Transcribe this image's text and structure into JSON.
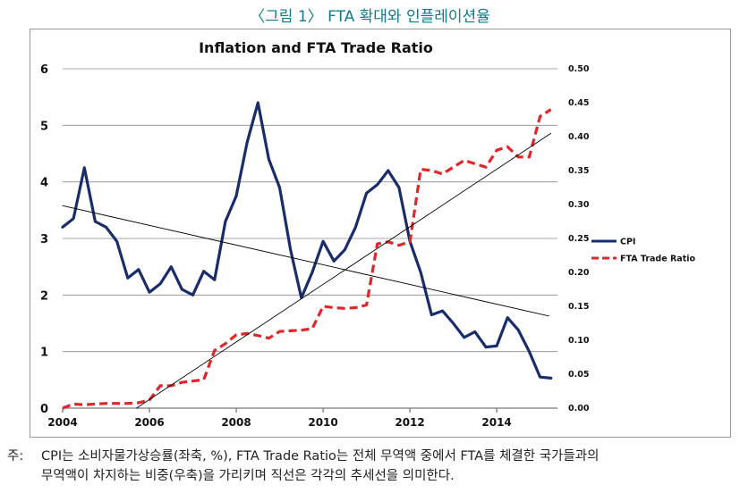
{
  "figure": {
    "caption": "〈그림 1〉 FTA 확대와 인플레이션율",
    "note_label": "주:",
    "note_line1": "CPI는 소비자물가상승률(좌축, %), FTA Trade Ratio는 전체 무역액 중에서 FTA를 체결한 국가들과의",
    "note_line2": "무역액이 차지하는 비중(우축)을 가리키며 직선은 각각의 추세선을 의미한다."
  },
  "colors": {
    "cpi": "#1a2d6b",
    "fta": "#e0262b",
    "trend": "#000000",
    "frame": "#9a9a9a",
    "caption": "#0f7a8c"
  },
  "chart_data": {
    "type": "line",
    "title": "Inflation and FTA Trade Ratio",
    "x_ticks": [
      "2004",
      "2006",
      "2008",
      "2010",
      "2012",
      "2014"
    ],
    "x_range": [
      2004,
      2015.4
    ],
    "y_left_ticks": [
      "0",
      "1",
      "2",
      "3",
      "4",
      "5",
      "6"
    ],
    "y_left_range": [
      0,
      6
    ],
    "y_right_ticks": [
      "0.00",
      "0.05",
      "0.10",
      "0.15",
      "0.20",
      "0.25",
      "0.30",
      "0.35",
      "0.40",
      "0.45",
      "0.50"
    ],
    "y_right_range": [
      0,
      0.5
    ],
    "legend_position": "right",
    "series": [
      {
        "name": "CPI",
        "axis": "left",
        "style": "solid",
        "x": [
          2004.0,
          2004.25,
          2004.5,
          2004.75,
          2005.0,
          2005.25,
          2005.5,
          2005.75,
          2006.0,
          2006.25,
          2006.5,
          2006.75,
          2007.0,
          2007.25,
          2007.5,
          2007.75,
          2008.0,
          2008.25,
          2008.5,
          2008.75,
          2009.0,
          2009.25,
          2009.5,
          2009.75,
          2010.0,
          2010.25,
          2010.5,
          2010.75,
          2011.0,
          2011.25,
          2011.5,
          2011.75,
          2012.0,
          2012.25,
          2012.5,
          2012.75,
          2013.0,
          2013.25,
          2013.5,
          2013.75,
          2014.0,
          2014.25,
          2014.5,
          2014.75,
          2015.0,
          2015.25
        ],
        "values": [
          3.2,
          3.35,
          4.25,
          3.3,
          3.2,
          2.95,
          2.3,
          2.45,
          2.05,
          2.2,
          2.5,
          2.1,
          2.0,
          2.42,
          2.27,
          3.3,
          3.75,
          4.7,
          5.4,
          4.4,
          3.9,
          2.8,
          1.95,
          2.4,
          2.95,
          2.6,
          2.8,
          3.2,
          3.8,
          3.95,
          4.2,
          3.9,
          2.95,
          2.4,
          1.65,
          1.72,
          1.5,
          1.25,
          1.35,
          1.08,
          1.1,
          1.6,
          1.38,
          1.0,
          0.55,
          0.53
        ]
      },
      {
        "name": "FTA Trade Ratio",
        "axis": "right",
        "style": "dashed",
        "x": [
          2004.0,
          2004.25,
          2004.5,
          2004.75,
          2005.0,
          2005.25,
          2005.5,
          2005.75,
          2006.0,
          2006.25,
          2006.5,
          2006.75,
          2007.0,
          2007.25,
          2007.5,
          2007.75,
          2008.0,
          2008.25,
          2008.5,
          2008.75,
          2009.0,
          2009.25,
          2009.5,
          2009.75,
          2010.0,
          2010.25,
          2010.5,
          2010.75,
          2011.0,
          2011.25,
          2011.5,
          2011.75,
          2012.0,
          2012.25,
          2012.5,
          2012.75,
          2013.0,
          2013.25,
          2013.5,
          2013.75,
          2014.0,
          2014.25,
          2014.5,
          2014.75,
          2015.0,
          2015.25
        ],
        "values": [
          0.0,
          0.006,
          0.005,
          0.006,
          0.007,
          0.007,
          0.007,
          0.008,
          0.012,
          0.033,
          0.033,
          0.038,
          0.04,
          0.042,
          0.085,
          0.095,
          0.108,
          0.11,
          0.107,
          0.103,
          0.113,
          0.114,
          0.115,
          0.117,
          0.15,
          0.148,
          0.147,
          0.148,
          0.152,
          0.242,
          0.245,
          0.24,
          0.245,
          0.352,
          0.35,
          0.345,
          0.355,
          0.365,
          0.36,
          0.355,
          0.38,
          0.385,
          0.37,
          0.37,
          0.43,
          0.44
        ]
      },
      {
        "name": "CPI trend",
        "axis": "left",
        "style": "thin",
        "x": [
          2004.0,
          2015.2
        ],
        "values": [
          3.58,
          1.63
        ]
      },
      {
        "name": "FTA trend",
        "axis": "right",
        "style": "thin",
        "x": [
          2005.7,
          2015.25
        ],
        "values": [
          0.0,
          0.405
        ]
      }
    ]
  }
}
